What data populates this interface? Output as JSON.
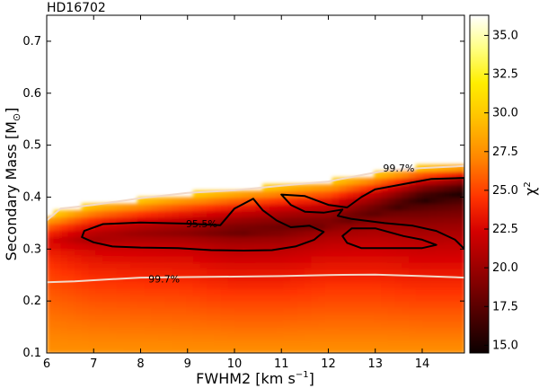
{
  "chart_data": {
    "type": "heatmap",
    "title": "HD16702",
    "xlabel": "FWHM2 [km s",
    "xlabel_sup": "−1",
    "xlabel_end": "]",
    "ylabel": "Secondary Mass [M",
    "ylabel_sub": "⊙",
    "ylabel_end": "]",
    "xlim": [
      6,
      14.9
    ],
    "ylim": [
      0.1,
      0.75
    ],
    "x_ticks": [
      6,
      7,
      8,
      9,
      10,
      11,
      12,
      13,
      14
    ],
    "x_tick_labels": [
      "6",
      "7",
      "8",
      "9",
      "10",
      "11",
      "12",
      "13",
      "14"
    ],
    "y_ticks": [
      0.1,
      0.2,
      0.3,
      0.4,
      0.5,
      0.6,
      0.7
    ],
    "y_tick_labels": [
      "0.1",
      "0.2",
      "0.3",
      "0.4",
      "0.5",
      "0.6",
      "0.7"
    ],
    "colorbar": {
      "label": "χ",
      "label_sup": "2",
      "range": [
        14.5,
        36.3
      ],
      "ticks": [
        15.0,
        17.5,
        20.0,
        22.5,
        25.0,
        27.5,
        30.0,
        32.5,
        35.0
      ],
      "tick_labels": [
        "15.0",
        "17.5",
        "20.0",
        "22.5",
        "25.0",
        "27.5",
        "30.0",
        "32.5",
        "35.0"
      ],
      "colormap": "hot"
    },
    "contours": [
      {
        "level": "95.5%",
        "color": "#000000",
        "label_pos": [
          9.3,
          0.349
        ],
        "regions": [
          [
            [
              6.8,
              0.335
            ],
            [
              7.2,
              0.348
            ],
            [
              8.0,
              0.351
            ],
            [
              9.0,
              0.349
            ],
            [
              9.7,
              0.346
            ],
            [
              10.0,
              0.378
            ],
            [
              10.4,
              0.397
            ],
            [
              10.6,
              0.375
            ],
            [
              10.9,
              0.355
            ],
            [
              11.2,
              0.342
            ],
            [
              11.6,
              0.345
            ],
            [
              11.9,
              0.333
            ],
            [
              11.7,
              0.318
            ],
            [
              11.3,
              0.305
            ],
            [
              10.8,
              0.298
            ],
            [
              10.2,
              0.297
            ],
            [
              9.5,
              0.298
            ],
            [
              8.8,
              0.302
            ],
            [
              8.0,
              0.303
            ],
            [
              7.4,
              0.305
            ],
            [
              7.0,
              0.313
            ],
            [
              6.75,
              0.323
            ]
          ],
          [
            [
              11.0,
              0.405
            ],
            [
              11.5,
              0.402
            ],
            [
              12.0,
              0.385
            ],
            [
              12.4,
              0.38
            ],
            [
              12.7,
              0.4
            ],
            [
              13.0,
              0.415
            ],
            [
              13.6,
              0.425
            ],
            [
              14.2,
              0.435
            ],
            [
              14.9,
              0.437
            ],
            [
              14.9,
              0.3
            ],
            [
              14.7,
              0.318
            ],
            [
              14.3,
              0.335
            ],
            [
              13.8,
              0.345
            ],
            [
              13.2,
              0.35
            ],
            [
              12.5,
              0.358
            ],
            [
              12.2,
              0.364
            ],
            [
              12.3,
              0.376
            ],
            [
              11.9,
              0.37
            ],
            [
              11.5,
              0.372
            ],
            [
              11.2,
              0.385
            ]
          ],
          [
            [
              12.5,
              0.34
            ],
            [
              13.0,
              0.34
            ],
            [
              13.6,
              0.325
            ],
            [
              14.0,
              0.318
            ],
            [
              14.3,
              0.308
            ],
            [
              14.0,
              0.302
            ],
            [
              13.4,
              0.302
            ],
            [
              12.7,
              0.302
            ],
            [
              12.4,
              0.312
            ],
            [
              12.3,
              0.325
            ]
          ]
        ]
      },
      {
        "level": "99.7%",
        "color": "#f2d9c8",
        "label_pos": [
          13.5,
          0.456
        ],
        "lower_label_pos": [
          8.5,
          0.243
        ],
        "upper_curve": [
          [
            6.0,
            0.355
          ],
          [
            6.3,
            0.378
          ],
          [
            7.0,
            0.385
          ],
          [
            8.0,
            0.398
          ],
          [
            9.0,
            0.408
          ],
          [
            10.0,
            0.413
          ],
          [
            11.0,
            0.422
          ],
          [
            12.0,
            0.43
          ],
          [
            12.8,
            0.444
          ],
          [
            13.3,
            0.452
          ],
          [
            14.0,
            0.456
          ],
          [
            14.9,
            0.46
          ]
        ],
        "lower_curve": [
          [
            6.0,
            0.236
          ],
          [
            6.6,
            0.238
          ],
          [
            7.0,
            0.24
          ],
          [
            8.0,
            0.245
          ],
          [
            9.0,
            0.246
          ],
          [
            10.0,
            0.247
          ],
          [
            11.0,
            0.248
          ],
          [
            12.0,
            0.25
          ],
          [
            13.0,
            0.251
          ],
          [
            14.0,
            0.248
          ],
          [
            14.9,
            0.245
          ]
        ]
      }
    ],
    "field_model": {
      "valley_x": [
        6.0,
        7.0,
        8.0,
        9.0,
        10.0,
        11.0,
        12.0,
        13.0,
        14.0,
        14.9
      ],
      "valley_y": [
        0.31,
        0.318,
        0.325,
        0.328,
        0.33,
        0.335,
        0.345,
        0.368,
        0.392,
        0.405
      ],
      "valley_chi2": [
        22.5,
        20.5,
        19.8,
        19.3,
        18.2,
        18.0,
        18.5,
        17.5,
        15.5,
        15.0
      ],
      "top_edge_y": [
        0.365,
        0.385,
        0.395,
        0.405,
        0.413,
        0.422,
        0.43,
        0.445,
        0.458,
        0.462
      ],
      "lower_chi2_at_0_1": 27.5,
      "upper_chi2_at_edge": 30.0
    }
  }
}
